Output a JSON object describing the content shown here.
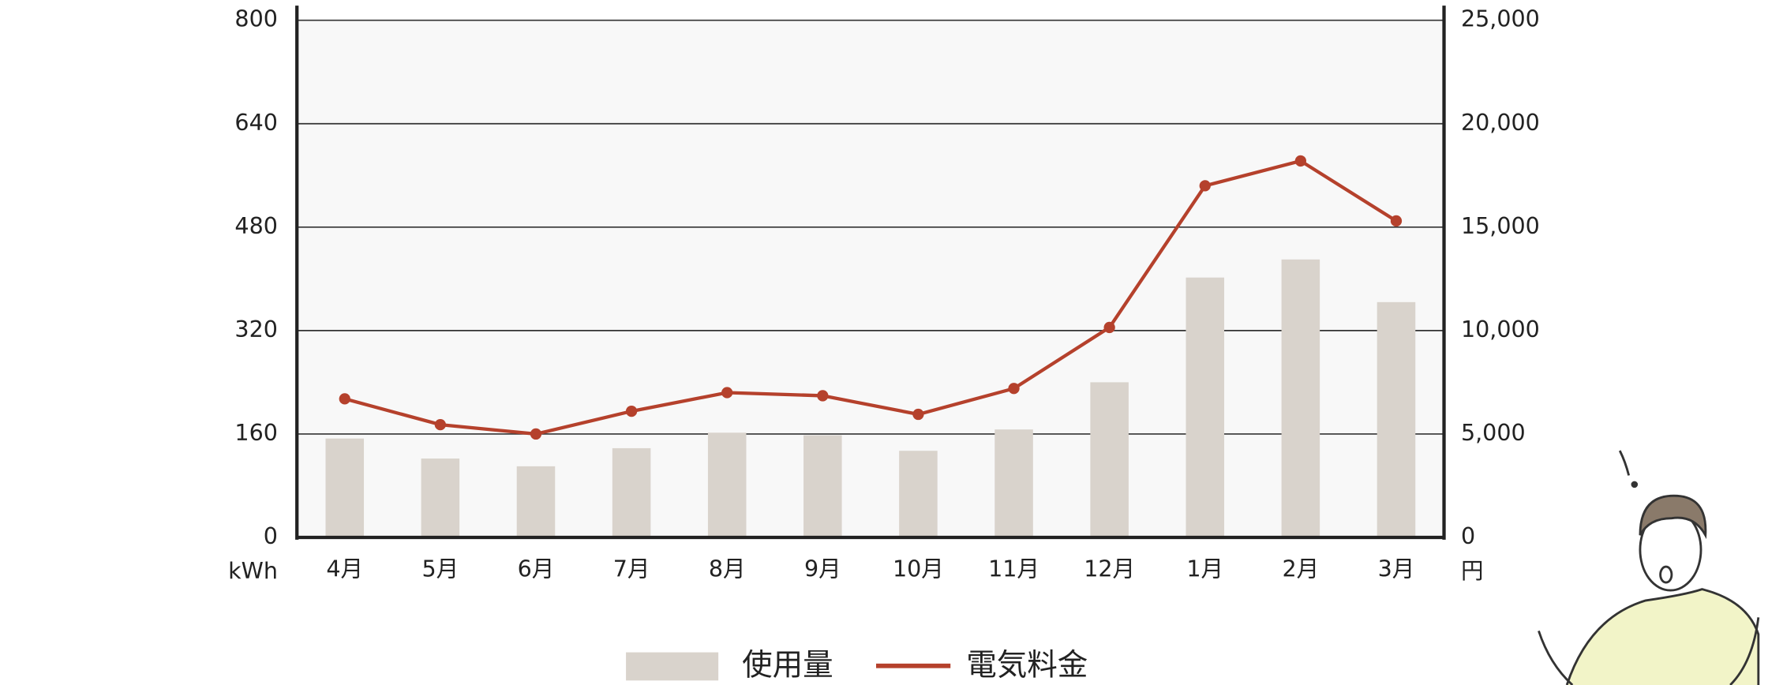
{
  "chart_data": {
    "type": "bar-line",
    "categories": [
      "4月",
      "5月",
      "6月",
      "7月",
      "8月",
      "9月",
      "10月",
      "11月",
      "12月",
      "1月",
      "2月",
      "3月"
    ],
    "series": [
      {
        "name": "使用量",
        "type": "bar",
        "color": "#d9d3cc",
        "values": [
          153,
          122,
          110,
          138,
          162,
          158,
          134,
          167,
          240,
          402,
          430,
          364
        ]
      },
      {
        "name": "電気料金",
        "type": "line",
        "axis": "y2",
        "color": "#b5412c",
        "values": [
          6700,
          5450,
          5000,
          6100,
          7000,
          6850,
          5950,
          7200,
          10150,
          17000,
          18200,
          15300
        ]
      }
    ],
    "ylim": [
      0,
      800
    ],
    "yticks": [
      0,
      160,
      320,
      480,
      640,
      800
    ],
    "y_unit": "kWh",
    "y2lim": [
      0,
      25000
    ],
    "y2ticks": [
      0,
      {
        "value": 5000,
        "label": "5,000"
      },
      {
        "value": 10000,
        "label": "10,000"
      },
      {
        "value": 15000,
        "label": "15,000"
      },
      {
        "value": 20000,
        "label": "20,000"
      },
      {
        "value": 25000,
        "label": "25,000"
      }
    ],
    "y2_unit": "円",
    "grid": true,
    "legend": "bottom"
  }
}
